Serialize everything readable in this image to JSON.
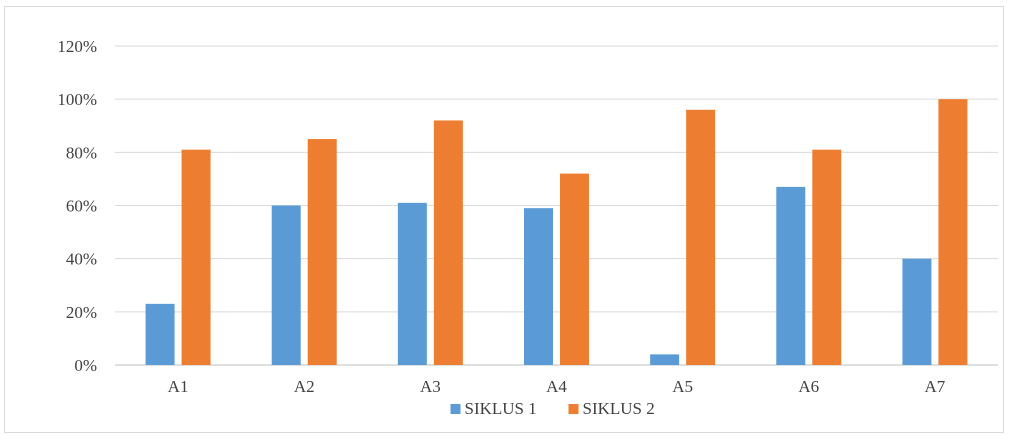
{
  "chart_data": {
    "type": "bar",
    "categories": [
      "A1",
      "A2",
      "A3",
      "A4",
      "A5",
      "A6",
      "A7"
    ],
    "series": [
      {
        "name": "SIKLUS 1",
        "color": "#5b9bd5",
        "values": [
          23,
          60,
          61,
          59,
          4,
          67,
          40
        ]
      },
      {
        "name": "SIKLUS 2",
        "color": "#ed7d31",
        "values": [
          81,
          85,
          92,
          72,
          96,
          81,
          100
        ]
      }
    ],
    "ylim": [
      0,
      120
    ],
    "yticks": [
      "0%",
      "20%",
      "40%",
      "60%",
      "80%",
      "100%",
      "120%"
    ],
    "grid": true,
    "legend": "bottom",
    "title": "",
    "xlabel": "",
    "ylabel": ""
  }
}
